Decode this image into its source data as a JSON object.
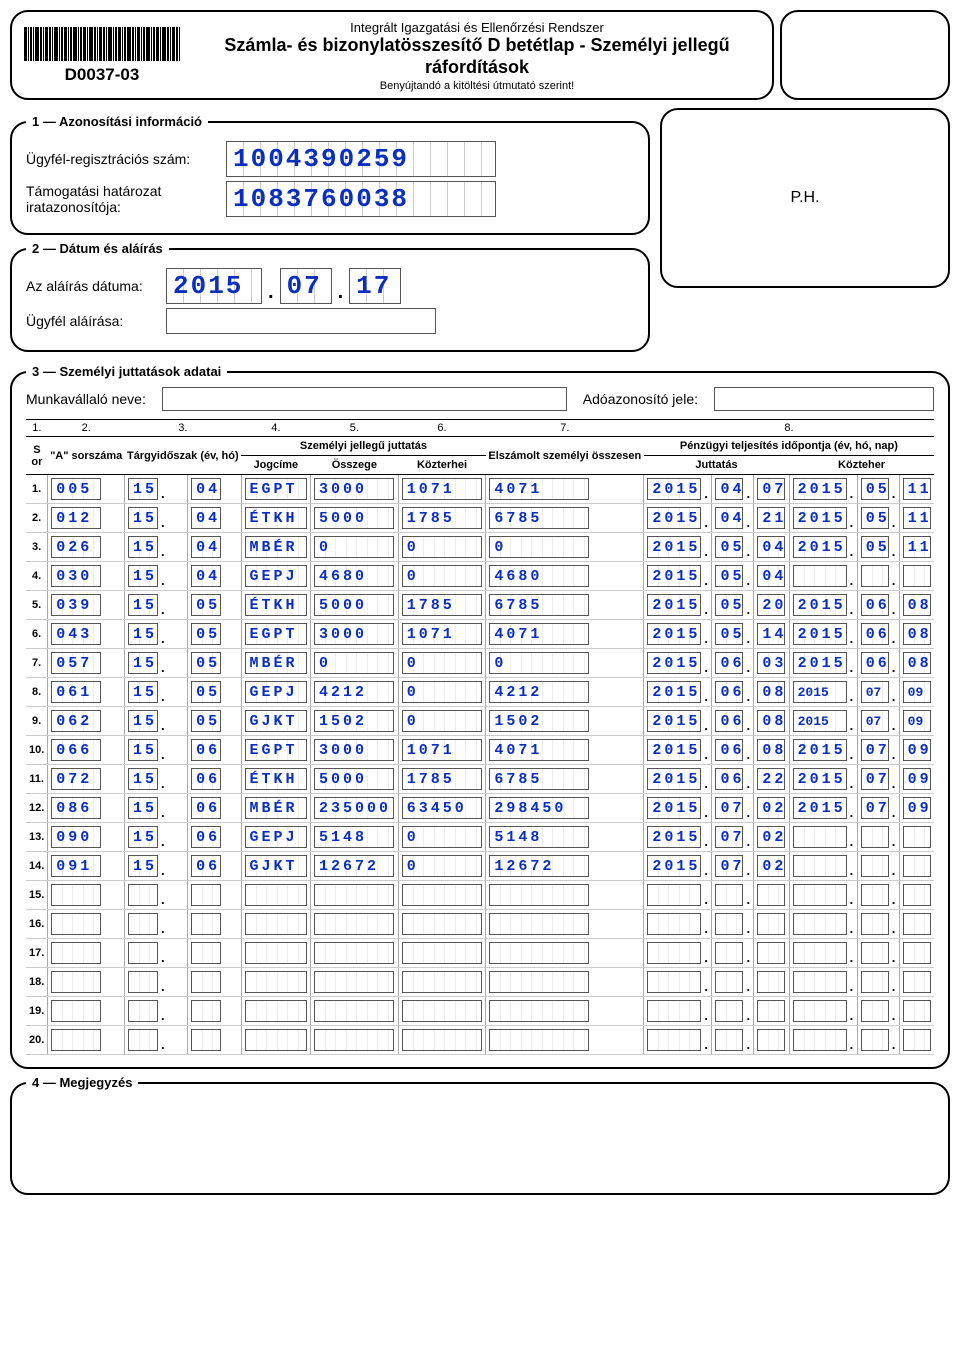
{
  "header": {
    "form_id": "D0037-03",
    "supertitle": "Integrált Igazgatási és Ellenőrzési Rendszer",
    "title": "Számla- és bizonylatösszesítő D betétlap - Személyi jellegű ráfordítások",
    "subtitle": "Benyújtandó a kitöltési útmutató szerint!"
  },
  "ph_label": "P.H.",
  "section1": {
    "legend": "1 — Azonosítási információ",
    "reg_label": "Ügyfél-regisztrációs szám:",
    "reg_value": "1004390259",
    "doc_label": "Támogatási határozat iratazonosítója:",
    "doc_value": "1083760038"
  },
  "section2": {
    "legend": "2 — Dátum és aláírás",
    "date_label": "Az aláírás dátuma:",
    "date": {
      "y": "2015",
      "m": "07",
      "d": "17"
    },
    "sig_label": "Ügyfél aláírása:"
  },
  "section3": {
    "legend": "3 — Személyi juttatások adatai",
    "emp_label": "Munkavállaló neve:",
    "tax_label": "Adóazonosító jele:",
    "col_nums": [
      "1.",
      "2.",
      "3.",
      "4.",
      "5.",
      "6.",
      "7.",
      "8."
    ],
    "headers": {
      "sor": "S or",
      "a": "\"A\" sorszáma",
      "targy": "Tárgyidőszak (év, hó)",
      "szem": "Személyi jellegű juttatás",
      "jog": "Jogcíme",
      "ossz": "Összege",
      "kozt": "Közterhei",
      "elsz": "Elszámolt személyi összesen",
      "penz": "Pénzügyi teljesítés időpontja (év, hó, nap)",
      "jut": "Juttatás",
      "kozth": "Közteher"
    },
    "rows": [
      {
        "n": "1.",
        "a": "005",
        "ev": "15",
        "ho": "04",
        "jog": "EGPT",
        "osz": "3000",
        "koz": "1071",
        "sum": "4071",
        "jy": "2015",
        "jm": "04",
        "jd": "07",
        "ky": "2015",
        "km": "05",
        "kd": "11"
      },
      {
        "n": "2.",
        "a": "012",
        "ev": "15",
        "ho": "04",
        "jog": "ÉTKH",
        "osz": "5000",
        "koz": "1785",
        "sum": "6785",
        "jy": "2015",
        "jm": "04",
        "jd": "21",
        "ky": "2015",
        "km": "05",
        "kd": "11"
      },
      {
        "n": "3.",
        "a": "026",
        "ev": "15",
        "ho": "04",
        "jog": "MBÉR",
        "osz": "0",
        "koz": "0",
        "sum": "0",
        "jy": "2015",
        "jm": "05",
        "jd": "04",
        "ky": "2015",
        "km": "05",
        "kd": "11"
      },
      {
        "n": "4.",
        "a": "030",
        "ev": "15",
        "ho": "04",
        "jog": "GEPJ",
        "osz": "4680",
        "koz": "0",
        "sum": "4680",
        "jy": "2015",
        "jm": "05",
        "jd": "04",
        "ky": "",
        "km": "",
        "kd": ""
      },
      {
        "n": "5.",
        "a": "039",
        "ev": "15",
        "ho": "05",
        "jog": "ÉTKH",
        "osz": "5000",
        "koz": "1785",
        "sum": "6785",
        "jy": "2015",
        "jm": "05",
        "jd": "20",
        "ky": "2015",
        "km": "06",
        "kd": "08"
      },
      {
        "n": "6.",
        "a": "043",
        "ev": "15",
        "ho": "05",
        "jog": "EGPT",
        "osz": "3000",
        "koz": "1071",
        "sum": "4071",
        "jy": "2015",
        "jm": "05",
        "jd": "14",
        "ky": "2015",
        "km": "06",
        "kd": "08"
      },
      {
        "n": "7.",
        "a": "057",
        "ev": "15",
        "ho": "05",
        "jog": "MBÉR",
        "osz": "0",
        "koz": "0",
        "sum": "0",
        "jy": "2015",
        "jm": "06",
        "jd": "03",
        "ky": "2015",
        "km": "06",
        "kd": "08"
      },
      {
        "n": "8.",
        "a": "061",
        "ev": "15",
        "ho": "05",
        "jog": "GEPJ",
        "osz": "4212",
        "koz": "0",
        "sum": "4212",
        "jy": "2015",
        "jm": "06",
        "jd": "08",
        "ky": "2015",
        "km": "07",
        "kd": "09",
        "tight": true
      },
      {
        "n": "9.",
        "a": "062",
        "ev": "15",
        "ho": "05",
        "jog": "GJKT",
        "osz": "1502",
        "koz": "0",
        "sum": "1502",
        "jy": "2015",
        "jm": "06",
        "jd": "08",
        "ky": "2015",
        "km": "07",
        "kd": "09",
        "tight": true
      },
      {
        "n": "10.",
        "a": "066",
        "ev": "15",
        "ho": "06",
        "jog": "EGPT",
        "osz": "3000",
        "koz": "1071",
        "sum": "4071",
        "jy": "2015",
        "jm": "06",
        "jd": "08",
        "ky": "2015",
        "km": "07",
        "kd": "09"
      },
      {
        "n": "11.",
        "a": "072",
        "ev": "15",
        "ho": "06",
        "jog": "ÉTKH",
        "osz": "5000",
        "koz": "1785",
        "sum": "6785",
        "jy": "2015",
        "jm": "06",
        "jd": "22",
        "ky": "2015",
        "km": "07",
        "kd": "09"
      },
      {
        "n": "12.",
        "a": "086",
        "ev": "15",
        "ho": "06",
        "jog": "MBÉR",
        "osz": "235000",
        "koz": "63450",
        "sum": "298450",
        "jy": "2015",
        "jm": "07",
        "jd": "02",
        "ky": "2015",
        "km": "07",
        "kd": "09"
      },
      {
        "n": "13.",
        "a": "090",
        "ev": "15",
        "ho": "06",
        "jog": "GEPJ",
        "osz": "5148",
        "koz": "0",
        "sum": "5148",
        "jy": "2015",
        "jm": "07",
        "jd": "02",
        "ky": "",
        "km": "",
        "kd": ""
      },
      {
        "n": "14.",
        "a": "091",
        "ev": "15",
        "ho": "06",
        "jog": "GJKT",
        "osz": "12672",
        "koz": "0",
        "sum": "12672",
        "jy": "2015",
        "jm": "07",
        "jd": "02",
        "ky": "",
        "km": "",
        "kd": ""
      },
      {
        "n": "15.",
        "a": "",
        "ev": "",
        "ho": "",
        "jog": "",
        "osz": "",
        "koz": "",
        "sum": "",
        "jy": "",
        "jm": "",
        "jd": "",
        "ky": "",
        "km": "",
        "kd": ""
      },
      {
        "n": "16.",
        "a": "",
        "ev": "",
        "ho": "",
        "jog": "",
        "osz": "",
        "koz": "",
        "sum": "",
        "jy": "",
        "jm": "",
        "jd": "",
        "ky": "",
        "km": "",
        "kd": ""
      },
      {
        "n": "17.",
        "a": "",
        "ev": "",
        "ho": "",
        "jog": "",
        "osz": "",
        "koz": "",
        "sum": "",
        "jy": "",
        "jm": "",
        "jd": "",
        "ky": "",
        "km": "",
        "kd": ""
      },
      {
        "n": "18.",
        "a": "",
        "ev": "",
        "ho": "",
        "jog": "",
        "osz": "",
        "koz": "",
        "sum": "",
        "jy": "",
        "jm": "",
        "jd": "",
        "ky": "",
        "km": "",
        "kd": ""
      },
      {
        "n": "19.",
        "a": "",
        "ev": "",
        "ho": "",
        "jog": "",
        "osz": "",
        "koz": "",
        "sum": "",
        "jy": "",
        "jm": "",
        "jd": "",
        "ky": "",
        "km": "",
        "kd": ""
      },
      {
        "n": "20.",
        "a": "",
        "ev": "",
        "ho": "",
        "jog": "",
        "osz": "",
        "koz": "",
        "sum": "",
        "jy": "",
        "jm": "",
        "jd": "",
        "ky": "",
        "km": "",
        "kd": ""
      }
    ]
  },
  "section4": {
    "legend": "4 — Megjegyzés"
  },
  "colors": {
    "value_color": "#0a2fbf",
    "border": "#000000"
  }
}
